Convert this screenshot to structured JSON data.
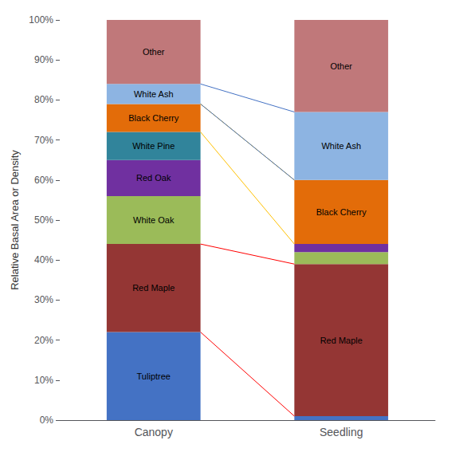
{
  "chart_data": {
    "type": "bar",
    "stacked": true,
    "grid": false,
    "ylabel": "Relative Basal Area or Density",
    "categories": [
      "Canopy",
      "Seedling"
    ],
    "series": [
      {
        "name": "Tuliptree",
        "color": "#4472C4",
        "values": [
          22,
          1
        ]
      },
      {
        "name": "Red Maple",
        "color": "#943634",
        "values": [
          22,
          38
        ]
      },
      {
        "name": "White Oak",
        "color": "#9BBB59",
        "values": [
          12,
          3
        ]
      },
      {
        "name": "Red Oak",
        "color": "#7030A0",
        "values": [
          9,
          2
        ]
      },
      {
        "name": "White Pine",
        "color": "#31849B",
        "values": [
          7,
          0
        ]
      },
      {
        "name": "Black Cherry",
        "color": "#E36C09",
        "values": [
          7,
          16
        ]
      },
      {
        "name": "White Ash",
        "color": "#8DB4E2",
        "values": [
          5,
          17
        ]
      },
      {
        "name": "Other",
        "color": "#C0787A",
        "values": [
          16,
          23
        ]
      }
    ],
    "annotations": [
      {
        "text": "Tuliptree",
        "category": "Canopy"
      },
      {
        "text": "Red Maple",
        "category": "Canopy"
      },
      {
        "text": "White Oak",
        "category": "Canopy"
      },
      {
        "text": "Red Oak",
        "category": "Canopy"
      },
      {
        "text": "White Pine",
        "category": "Canopy"
      },
      {
        "text": "Black Cherry",
        "category": "Canopy"
      },
      {
        "text": "White Ash",
        "category": "Canopy"
      },
      {
        "text": "Other",
        "category": "Canopy"
      },
      {
        "text": "Red Maple",
        "category": "Seedling"
      },
      {
        "text": "Black Cherry",
        "category": "Seedling"
      },
      {
        "text": "White Ash",
        "category": "Seedling"
      },
      {
        "text": "Other",
        "category": "Seedling"
      }
    ],
    "connectors": [
      {
        "series": "Red Maple",
        "color": "#FF0000"
      },
      {
        "series": "Black Cherry",
        "color": "#FFC000"
      },
      {
        "series": "White Ash",
        "color": "#4472C4"
      }
    ],
    "ylim": [
      0,
      100
    ],
    "yticks": [
      {
        "value": 0,
        "label": "0%"
      },
      {
        "value": 10,
        "label": "10%"
      },
      {
        "value": 20,
        "label": "20%"
      },
      {
        "value": 30,
        "label": "30%"
      },
      {
        "value": 40,
        "label": "40%"
      },
      {
        "value": 50,
        "label": "50%"
      },
      {
        "value": 60,
        "label": "60%"
      },
      {
        "value": 70,
        "label": "70%"
      },
      {
        "value": 80,
        "label": "80%"
      },
      {
        "value": 90,
        "label": "90%"
      },
      {
        "value": 100,
        "label": "100%"
      }
    ]
  }
}
